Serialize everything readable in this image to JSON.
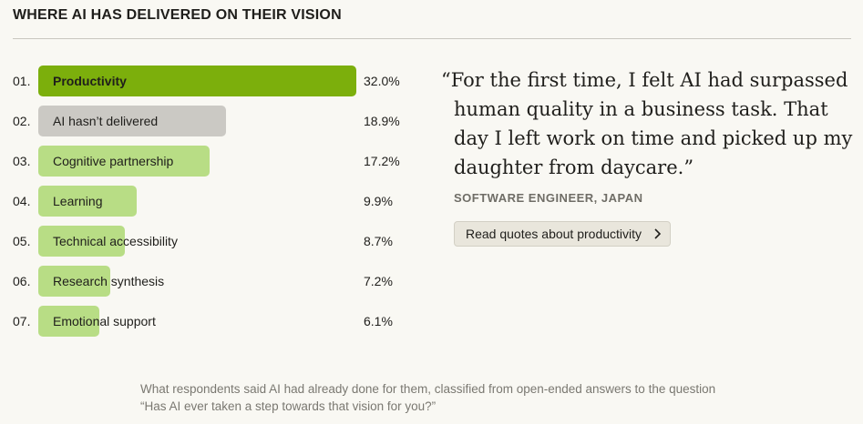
{
  "header": {
    "title": "WHERE AI HAS DELIVERED ON THEIR VISION"
  },
  "quote": {
    "text": "“For the first time, I felt AI had surpassed human quality in a business task. That day I left work on time and picked up my daughter from daycare.”",
    "attribution": "SOFTWARE ENGINEER, JAPAN",
    "button_label": "Read quotes about productivity",
    "button_icon": "chevron-right-icon"
  },
  "caption": "What respondents said AI had already done for them, classified from open-ended answers to the question “Has AI ever taken a step towards that vision for you?”",
  "colors": {
    "highlight": "#7caf0c",
    "neutral": "#cbc9c4",
    "light": "#b8dd85"
  },
  "chart_data": {
    "type": "bar",
    "orientation": "horizontal",
    "title": "WHERE AI HAS DELIVERED ON THEIR VISION",
    "unit": "%",
    "xlim": [
      0,
      32
    ],
    "categories": [
      "Productivity",
      "AI hasn’t delivered",
      "Cognitive partnership",
      "Learning",
      "Technical accessibility",
      "Research synthesis",
      "Emotional support"
    ],
    "ranks": [
      "01.",
      "02.",
      "03.",
      "04.",
      "05.",
      "06.",
      "07."
    ],
    "values": [
      32.0,
      18.9,
      17.2,
      9.9,
      8.7,
      7.2,
      6.1
    ],
    "value_labels": [
      "32.0%",
      "18.9%",
      "17.2%",
      "9.9%",
      "8.7%",
      "7.2%",
      "6.1%"
    ],
    "bar_colors": [
      "#7caf0c",
      "#cbc9c4",
      "#b8dd85",
      "#b8dd85",
      "#b8dd85",
      "#b8dd85",
      "#b8dd85"
    ]
  }
}
